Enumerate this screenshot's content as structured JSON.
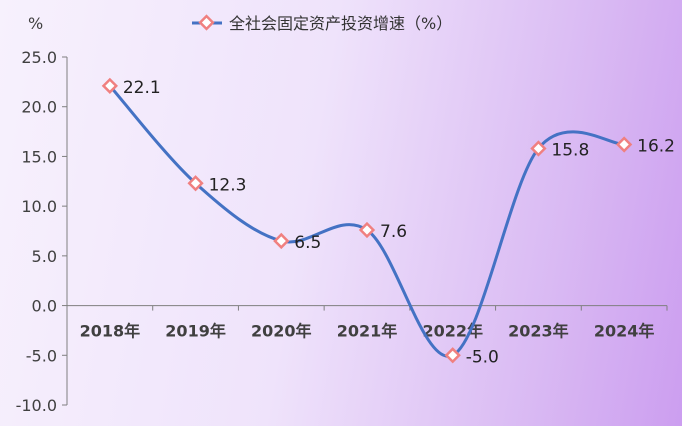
{
  "chart_data": {
    "type": "line",
    "title": "",
    "unit_label": "%",
    "legend": {
      "label": "全社会固定资产投资增速（%）",
      "placement": "top"
    },
    "categories": [
      "2018年",
      "2019年",
      "2020年",
      "2021年",
      "2022年",
      "2023年",
      "2024年"
    ],
    "series": [
      {
        "name": "全社会固定资产投资增速（%）",
        "values": [
          22.1,
          12.3,
          6.5,
          7.6,
          -5.0,
          15.8,
          16.2
        ],
        "data_labels": [
          "22.1",
          "12.3",
          "6.5",
          "7.6",
          "-5.0",
          "15.8",
          "16.2"
        ],
        "line_color": "#4472c4",
        "marker_color": "#f08080",
        "smooth": true
      }
    ],
    "yticks": [
      "25.0",
      "20.0",
      "15.0",
      "10.0",
      "5.0",
      "0.0",
      "-5.0",
      "-10.0"
    ],
    "ylim": [
      -10,
      25
    ],
    "grid": false
  }
}
